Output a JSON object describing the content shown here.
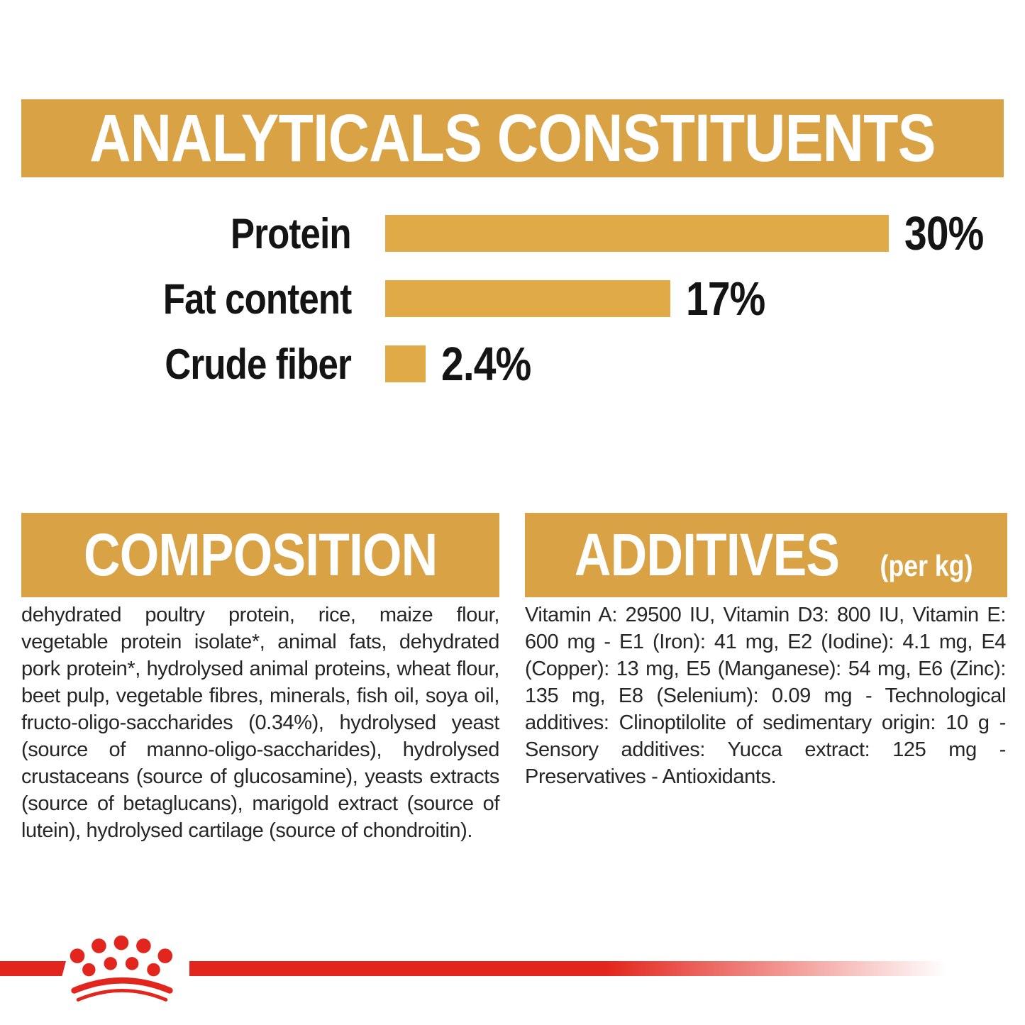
{
  "colors": {
    "gold": "#D8A245",
    "bar_gold": "#E0AA47",
    "red": "#E3261D",
    "text_black": "#141414"
  },
  "analyticals": {
    "title": "ANALYTICALS CONSTITUENTS"
  },
  "chart_data": {
    "type": "bar",
    "orientation": "horizontal",
    "title": "ANALYTICALS CONSTITUENTS",
    "categories": [
      "Protein",
      "Fat content",
      "Crude fiber"
    ],
    "values": [
      30,
      17,
      2.4
    ],
    "value_labels": [
      "30%",
      "17%",
      "2.4%"
    ],
    "unit": "%",
    "xlim": [
      0,
      30
    ],
    "grid": false,
    "legend": false,
    "bar_color": "#E0AA47"
  },
  "composition": {
    "title": "COMPOSITION",
    "body": "dehydrated poultry protein, rice, maize flour, vegetable protein isolate*, animal fats, dehydrated pork protein*, hydrolysed animal proteins, wheat flour, beet pulp, vegetable fibres, minerals, fish oil, soya oil, fructo-oligo-saccharides (0.34%), hydrolysed yeast (source of manno-oligo-saccharides), hydrolysed crustaceans (source of glucosamine), yeasts extracts (source of betaglucans), marigold extract (source of lutein), hydrolysed cartilage (source of chondroitin)."
  },
  "additives": {
    "title": "ADDITIVES",
    "title_suffix": "(per kg)",
    "body": "Vitamin A: 29500 IU, Vitamin D3: 800 IU, Vitamin E: 600 mg - E1 (Iron): 41 mg, E2 (Iodine): 4.1 mg, E4 (Copper): 13 mg, E5 (Manganese): 54 mg, E6 (Zinc): 135 mg, E8 (Selenium): 0.09 mg - Technological additives: Clinoptilolite of sedimentary origin: 10 g - Sensory additives: Yucca extract: 125 mg - Preservatives - Antioxidants.",
    "title_suffix_note": ""
  },
  "footer": {
    "brand_icon": "royal-canin-crown"
  }
}
